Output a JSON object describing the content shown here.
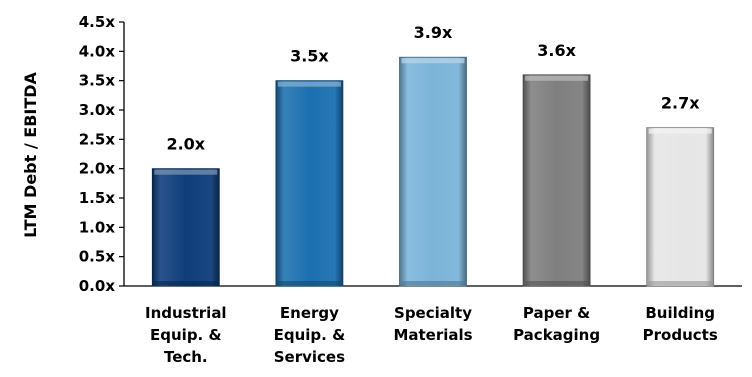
{
  "chart_data": {
    "type": "bar",
    "title": "",
    "xlabel": "",
    "ylabel": "LTM Debt / EBITDA",
    "categories": [
      [
        "Industrial",
        "Equip. &",
        "Tech."
      ],
      [
        "Energy",
        "Equip. &",
        "Services"
      ],
      [
        "Specialty",
        "Materials"
      ],
      [
        "Paper &",
        "Packaging"
      ],
      [
        "Building",
        "Products"
      ]
    ],
    "values": [
      2.0,
      3.5,
      3.9,
      3.6,
      2.7
    ],
    "data_labels": [
      "2.0x",
      "3.5x",
      "3.9x",
      "3.6x",
      "2.7x"
    ],
    "y_ticks": [
      "0.0x",
      "0.5x",
      "1.0x",
      "1.5x",
      "2.0x",
      "2.5x",
      "3.0x",
      "3.5x",
      "4.0x",
      "4.5x"
    ],
    "ylim": [
      0,
      4.5
    ],
    "grid": false,
    "legend": "none",
    "colors": [
      "#0e3d7a",
      "#1c70b0",
      "#7bb4d9",
      "#7f7f7f",
      "#e6e6e6"
    ]
  }
}
